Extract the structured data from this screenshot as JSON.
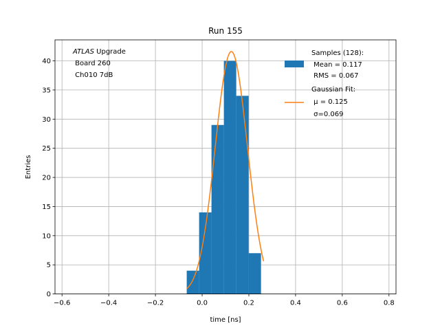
{
  "chart_data": {
    "type": "bar",
    "title": "Run 155",
    "xlabel": "time [ns]",
    "ylabel": "Entries",
    "xlim": [
      -0.63,
      0.83
    ],
    "ylim": [
      0,
      43.6
    ],
    "xticks": [
      -0.6,
      -0.4,
      -0.2,
      0.0,
      0.2,
      0.4,
      0.6,
      0.8
    ],
    "xtick_labels": [
      "−0.6",
      "−0.4",
      "−0.2",
      "0.0",
      "0.2",
      "0.4",
      "0.6",
      "0.8"
    ],
    "yticks": [
      0,
      5,
      10,
      15,
      20,
      25,
      30,
      35,
      40
    ],
    "ytick_labels": [
      "0",
      "5",
      "10",
      "15",
      "20",
      "25",
      "30",
      "35",
      "40"
    ],
    "grid": true,
    "bin_edges": [
      -0.066,
      -0.013,
      0.04,
      0.093,
      0.146,
      0.199,
      0.252
    ],
    "bin_counts": [
      4,
      14,
      29,
      40,
      34,
      7
    ],
    "fit": {
      "mu": 0.125,
      "sigma": 0.069,
      "peak": 41.6,
      "x_range": [
        -0.066,
        0.263
      ]
    },
    "colors": {
      "bars": "#1f77b4",
      "fit": "#ff7f0e",
      "grid": "#b0b0b0"
    },
    "annotation": {
      "lines": [
        "ATLAS Upgrade",
        " Board 260",
        " Ch010 7dB"
      ]
    },
    "legend": {
      "placement": "top-right",
      "histogram": {
        "lines": [
          "Samples (128):",
          " Mean = 0.117",
          " RMS = 0.067"
        ]
      },
      "fit": {
        "lines": [
          "Gaussian Fit:",
          " μ = 0.125",
          " σ=0.069"
        ]
      }
    }
  }
}
